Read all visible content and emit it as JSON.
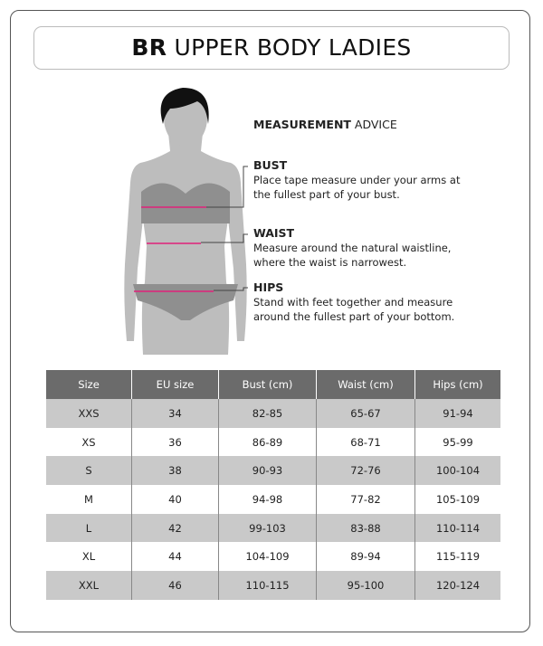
{
  "title": {
    "bold": "BR",
    "rest": "UPPER BODY LADIES"
  },
  "advice": {
    "heading_bold": "MEASUREMENT",
    "heading_rest": "ADVICE",
    "items": [
      {
        "label": "BUST",
        "line1": "Place tape measure under your arms at",
        "line2": "the fullest part of your bust."
      },
      {
        "label": "WAIST",
        "line1": "Measure around the natural waistline,",
        "line2": "where the waist is narrowest."
      },
      {
        "label": "HIPS",
        "line1": "Stand with feet together and measure",
        "line2": "around the fullest part of your bottom."
      }
    ]
  },
  "colors": {
    "tape": "#e0207a",
    "header": "#6b6b6b",
    "stripe": "#c9c9c9",
    "body": "#bdbdbd"
  },
  "table": {
    "headers": [
      "Size",
      "EU size",
      "Bust (cm)",
      "Waist (cm)",
      "Hips (cm)"
    ],
    "rows": [
      [
        "XXS",
        "34",
        "82-85",
        "65-67",
        "91-94"
      ],
      [
        "XS",
        "36",
        "86-89",
        "68-71",
        "95-99"
      ],
      [
        "S",
        "38",
        "90-93",
        "72-76",
        "100-104"
      ],
      [
        "M",
        "40",
        "94-98",
        "77-82",
        "105-109"
      ],
      [
        "L",
        "42",
        "99-103",
        "83-88",
        "110-114"
      ],
      [
        "XL",
        "44",
        "104-109",
        "89-94",
        "115-119"
      ],
      [
        "XXL",
        "46",
        "110-115",
        "95-100",
        "120-124"
      ]
    ]
  }
}
